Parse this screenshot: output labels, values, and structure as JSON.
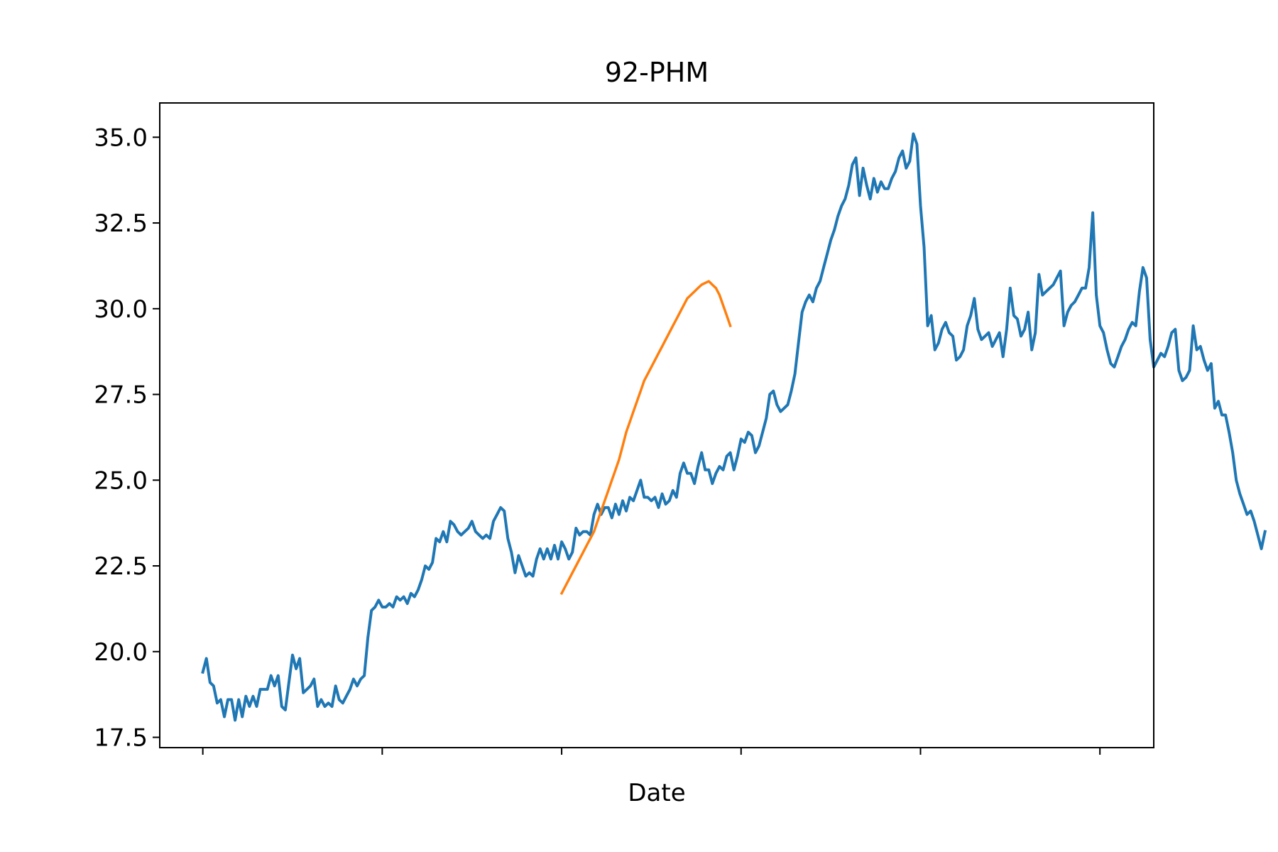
{
  "chart_data": {
    "type": "line",
    "title": "92-PHM",
    "xlabel": "Date",
    "ylabel": "",
    "ylim": [
      17.2,
      36.0
    ],
    "xlim": [
      -12,
      265
    ],
    "x_ticks": [
      0,
      50,
      100,
      150,
      200,
      250
    ],
    "x_tick_labels": [
      "",
      "",
      "",
      "",
      "",
      ""
    ],
    "y_ticks": [
      17.5,
      20.0,
      22.5,
      25.0,
      27.5,
      30.0,
      32.5,
      35.0
    ],
    "y_tick_labels": [
      "17.5",
      "20.0",
      "22.5",
      "25.0",
      "27.5",
      "30.0",
      "32.5",
      "35.0"
    ],
    "grid": false,
    "colors": {
      "price": "#1f77b4",
      "moving_average": "#ff7f0e"
    },
    "series": [
      {
        "role": "price",
        "x_start": 0,
        "values": [
          19.4,
          19.8,
          19.1,
          19.0,
          18.5,
          18.6,
          18.1,
          18.6,
          18.6,
          18.0,
          18.6,
          18.1,
          18.7,
          18.4,
          18.7,
          18.4,
          18.9,
          18.9,
          18.9,
          19.3,
          19.0,
          19.3,
          18.4,
          18.3,
          19.1,
          19.9,
          19.5,
          19.8,
          18.8,
          18.9,
          19.0,
          19.2,
          18.4,
          18.6,
          18.4,
          18.5,
          18.4,
          19.0,
          18.6,
          18.5,
          18.7,
          18.9,
          19.2,
          19.0,
          19.2,
          19.3,
          20.4,
          21.2,
          21.3,
          21.5,
          21.3,
          21.3,
          21.4,
          21.3,
          21.6,
          21.5,
          21.6,
          21.4,
          21.7,
          21.6,
          21.8,
          22.1,
          22.5,
          22.4,
          22.6,
          23.3,
          23.2,
          23.5,
          23.2,
          23.8,
          23.7,
          23.5,
          23.4,
          23.5,
          23.6,
          23.8,
          23.5,
          23.4,
          23.3,
          23.4,
          23.3,
          23.8,
          24.0,
          24.2,
          24.1,
          23.3,
          22.9,
          22.3,
          22.8,
          22.5,
          22.2,
          22.3,
          22.2,
          22.7,
          23.0,
          22.7,
          23.0,
          22.7,
          23.1,
          22.7,
          23.2,
          23.0,
          22.7,
          22.9,
          23.6,
          23.4,
          23.5,
          23.5,
          23.4,
          24.0,
          24.3,
          24.0,
          24.2,
          24.2,
          23.9,
          24.3,
          24.0,
          24.4,
          24.1,
          24.5,
          24.4,
          24.7,
          25.0,
          24.5,
          24.5,
          24.4,
          24.5,
          24.2,
          24.6,
          24.3,
          24.4,
          24.7,
          24.5,
          25.2,
          25.5,
          25.2,
          25.2,
          24.9,
          25.4,
          25.8,
          25.3,
          25.3,
          24.9,
          25.2,
          25.4,
          25.3,
          25.7,
          25.8,
          25.3,
          25.7,
          26.2,
          26.1,
          26.4,
          26.3,
          25.8,
          26.0,
          26.4,
          26.8,
          27.5,
          27.6,
          27.2,
          27.0,
          27.1,
          27.2,
          27.6,
          28.1,
          29.0,
          29.9,
          30.2,
          30.4,
          30.2,
          30.6,
          30.8,
          31.2,
          31.6,
          32.0,
          32.3,
          32.7,
          33.0,
          33.2,
          33.6,
          34.2,
          34.4,
          33.3,
          34.1,
          33.6,
          33.2,
          33.8,
          33.4,
          33.7,
          33.5,
          33.5,
          33.8,
          34.0,
          34.4,
          34.6,
          34.1,
          34.3,
          35.1,
          34.8,
          33.0,
          31.8,
          29.5,
          29.8,
          28.8,
          29.0,
          29.4,
          29.6,
          29.3,
          29.2,
          28.5,
          28.6,
          28.8,
          29.5,
          29.8,
          30.3,
          29.4,
          29.1,
          29.2,
          29.3,
          28.9,
          29.1,
          29.3,
          28.6,
          29.4,
          30.6,
          29.8,
          29.7,
          29.2,
          29.4,
          29.9,
          28.8,
          29.3,
          31.0,
          30.4,
          30.5,
          30.6,
          30.7,
          30.9,
          31.1,
          29.5,
          29.9,
          30.1,
          30.2,
          30.4,
          30.6,
          30.6,
          31.2,
          32.8,
          30.4,
          29.5,
          29.3,
          28.8,
          28.4,
          28.3,
          28.6,
          28.9,
          29.1,
          29.4,
          29.6,
          29.5,
          30.5,
          31.2,
          30.9,
          29.1,
          28.3,
          28.5,
          28.7,
          28.6,
          28.9,
          29.3,
          29.4,
          28.2,
          27.9,
          28.0,
          28.2,
          29.5,
          28.8,
          28.9,
          28.5,
          28.2,
          28.4,
          27.1,
          27.3,
          26.9,
          26.9,
          26.4,
          25.8,
          25.0,
          24.6,
          24.3,
          24.0,
          24.1,
          23.8,
          23.4,
          23.0,
          23.5
        ]
      },
      {
        "role": "moving_average",
        "x_start": 100,
        "values": [
          21.7,
          21.9,
          22.1,
          22.3,
          22.5,
          22.7,
          22.9,
          23.1,
          23.3,
          23.5,
          23.8,
          24.1,
          24.4,
          24.7,
          25.0,
          25.3,
          25.6,
          26.0,
          26.4,
          26.7,
          27.0,
          27.3,
          27.6,
          27.9,
          28.1,
          28.3,
          28.5,
          28.7,
          28.9,
          29.1,
          29.3,
          29.5,
          29.7,
          29.9,
          30.1,
          30.3,
          30.4,
          30.5,
          30.6,
          30.7,
          30.75,
          30.8,
          30.7,
          30.6,
          30.4,
          30.1,
          29.8,
          29.5
        ]
      }
    ]
  }
}
